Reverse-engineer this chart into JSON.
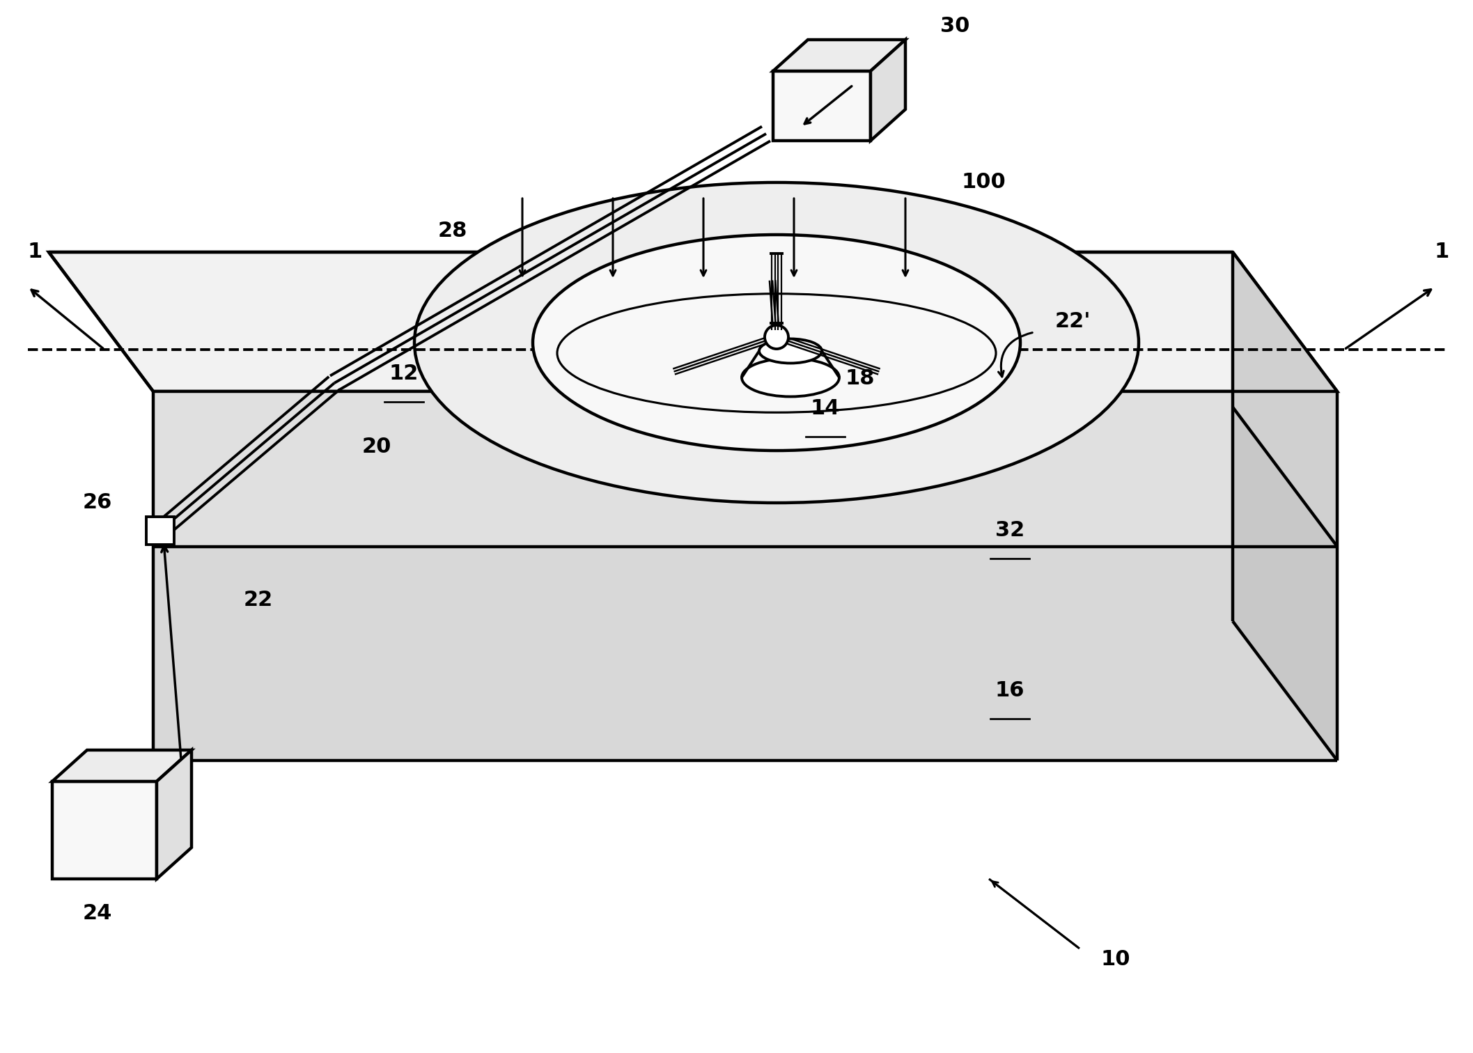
{
  "bg_color": "#ffffff",
  "line_color": "#000000",
  "lw": 2.8,
  "tlw": 3.2,
  "fs": 20,
  "fw": "bold",
  "fig_w": 21.15,
  "fig_h": 15.12,
  "dpi": 100,
  "top_face_color": "#f2f2f2",
  "front_face_color": "#e0e0e0",
  "right_face_color": "#d0d0d0",
  "box_face_color": "#f8f8f8",
  "box_side_color": "#e0e0e0",
  "box_top_color": "#ececec"
}
